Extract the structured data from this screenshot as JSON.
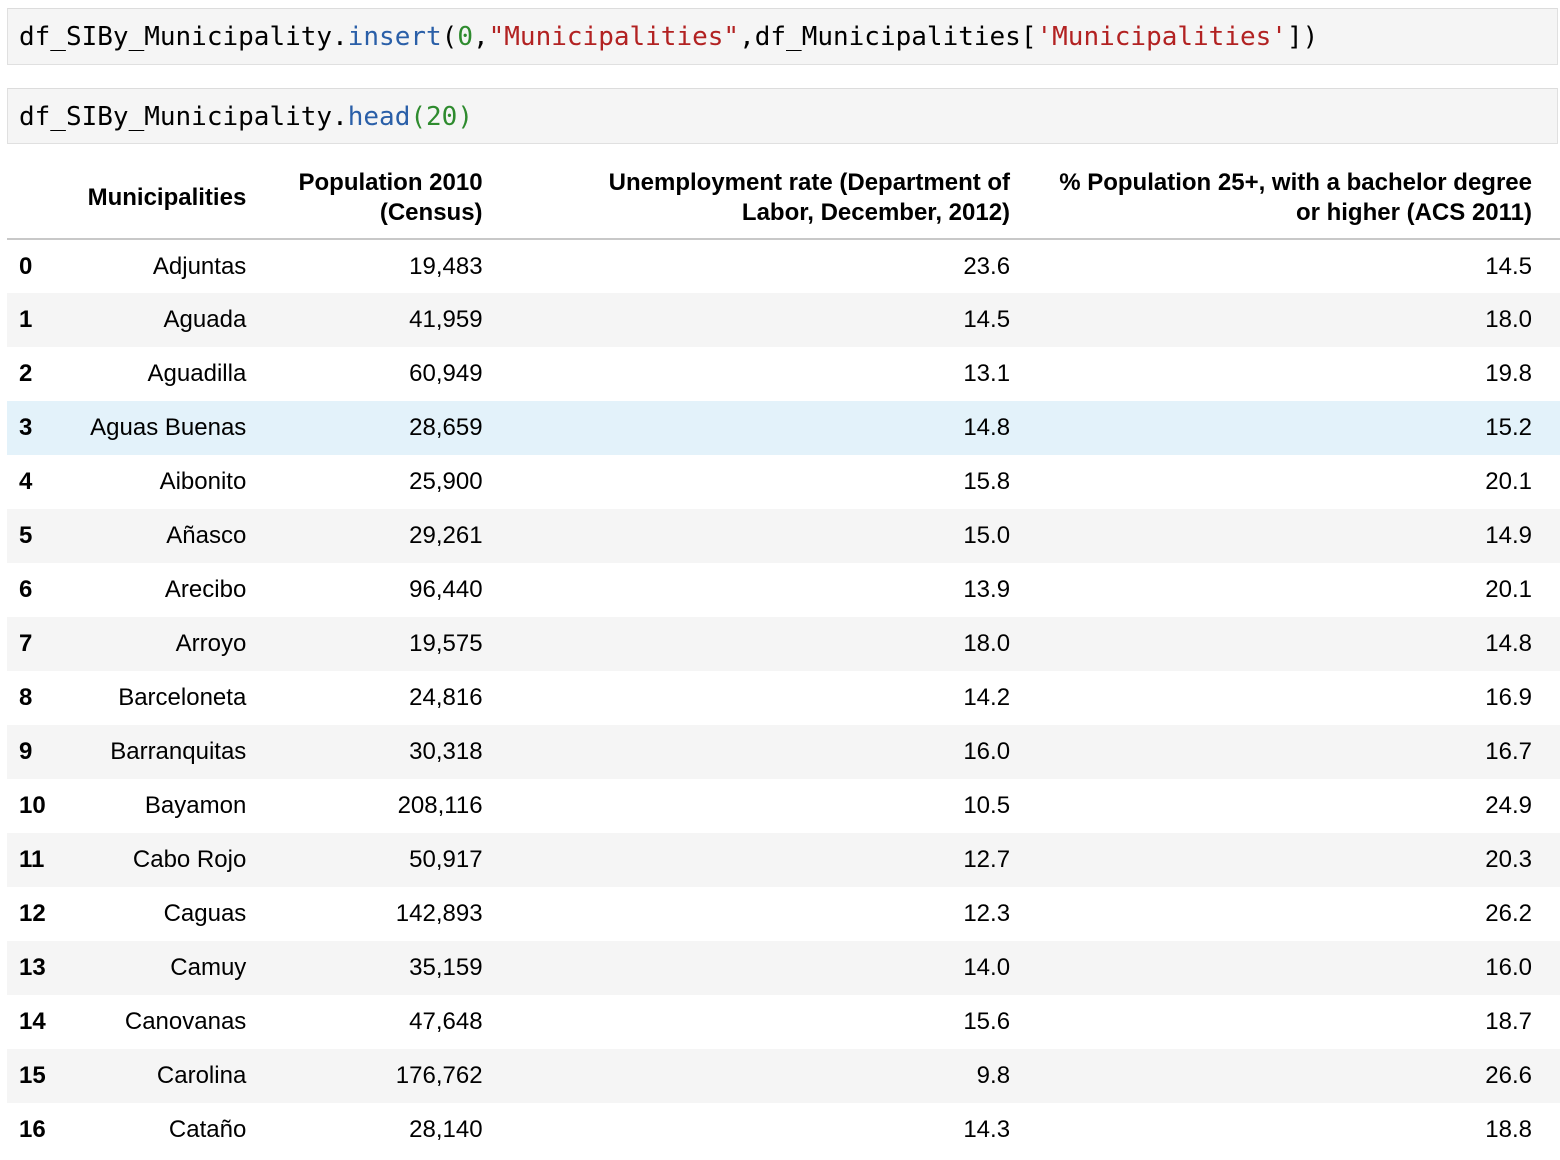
{
  "cells": {
    "cell1": {
      "tokens": [
        {
          "t": "df_SIBy_Municipality.",
          "c": "tok-name"
        },
        {
          "t": "insert",
          "c": "tok-method"
        },
        {
          "t": "(",
          "c": "tok-punct"
        },
        {
          "t": "0",
          "c": "tok-num"
        },
        {
          "t": ",",
          "c": "tok-punct"
        },
        {
          "t": "\"Municipalities\"",
          "c": "tok-str"
        },
        {
          "t": ",df_Municipalities[",
          "c": "tok-name"
        },
        {
          "t": "'Municipalities'",
          "c": "tok-str"
        },
        {
          "t": "])",
          "c": "tok-punct"
        }
      ]
    },
    "cell2": {
      "tokens": [
        {
          "t": "df_SIBy_Municipality.",
          "c": "tok-name"
        },
        {
          "t": "head",
          "c": "tok-method"
        },
        {
          "t": "(",
          "c": "tok-paren-green"
        },
        {
          "t": "20",
          "c": "tok-num"
        },
        {
          "t": ")",
          "c": "tok-paren-green"
        }
      ]
    }
  },
  "table": {
    "headers": {
      "index": "",
      "municipalities": "Municipalities",
      "population_line1": "Population 2010",
      "population_line2": "(Census)",
      "unemployment_line1": "Unemployment rate (Department of",
      "unemployment_line2": "Labor, December, 2012)",
      "bachelor_line1": "% Population 25+, with a bachelor degree",
      "bachelor_line2": "or higher (ACS 2011)"
    },
    "highlighted_row": 3,
    "rows": [
      {
        "index": "0",
        "municipality": "Adjuntas",
        "population": "19,483",
        "unemployment": "23.6",
        "bachelor": "14.5"
      },
      {
        "index": "1",
        "municipality": "Aguada",
        "population": "41,959",
        "unemployment": "14.5",
        "bachelor": "18.0"
      },
      {
        "index": "2",
        "municipality": "Aguadilla",
        "population": "60,949",
        "unemployment": "13.1",
        "bachelor": "19.8"
      },
      {
        "index": "3",
        "municipality": "Aguas Buenas",
        "population": "28,659",
        "unemployment": "14.8",
        "bachelor": "15.2"
      },
      {
        "index": "4",
        "municipality": "Aibonito",
        "population": "25,900",
        "unemployment": "15.8",
        "bachelor": "20.1"
      },
      {
        "index": "5",
        "municipality": "Añasco",
        "population": "29,261",
        "unemployment": "15.0",
        "bachelor": "14.9"
      },
      {
        "index": "6",
        "municipality": "Arecibo",
        "population": "96,440",
        "unemployment": "13.9",
        "bachelor": "20.1"
      },
      {
        "index": "7",
        "municipality": "Arroyo",
        "population": "19,575",
        "unemployment": "18.0",
        "bachelor": "14.8"
      },
      {
        "index": "8",
        "municipality": "Barceloneta",
        "population": "24,816",
        "unemployment": "14.2",
        "bachelor": "16.9"
      },
      {
        "index": "9",
        "municipality": "Barranquitas",
        "population": "30,318",
        "unemployment": "16.0",
        "bachelor": "16.7"
      },
      {
        "index": "10",
        "municipality": "Bayamon",
        "population": "208,116",
        "unemployment": "10.5",
        "bachelor": "24.9"
      },
      {
        "index": "11",
        "municipality": "Cabo Rojo",
        "population": "50,917",
        "unemployment": "12.7",
        "bachelor": "20.3"
      },
      {
        "index": "12",
        "municipality": "Caguas",
        "population": "142,893",
        "unemployment": "12.3",
        "bachelor": "26.2"
      },
      {
        "index": "13",
        "municipality": "Camuy",
        "population": "35,159",
        "unemployment": "14.0",
        "bachelor": "16.0"
      },
      {
        "index": "14",
        "municipality": "Canovanas",
        "population": "47,648",
        "unemployment": "15.6",
        "bachelor": "18.7"
      },
      {
        "index": "15",
        "municipality": "Carolina",
        "population": "176,762",
        "unemployment": "9.8",
        "bachelor": "26.6"
      },
      {
        "index": "16",
        "municipality": "Cataño",
        "population": "28,140",
        "unemployment": "14.3",
        "bachelor": "18.8"
      }
    ]
  }
}
